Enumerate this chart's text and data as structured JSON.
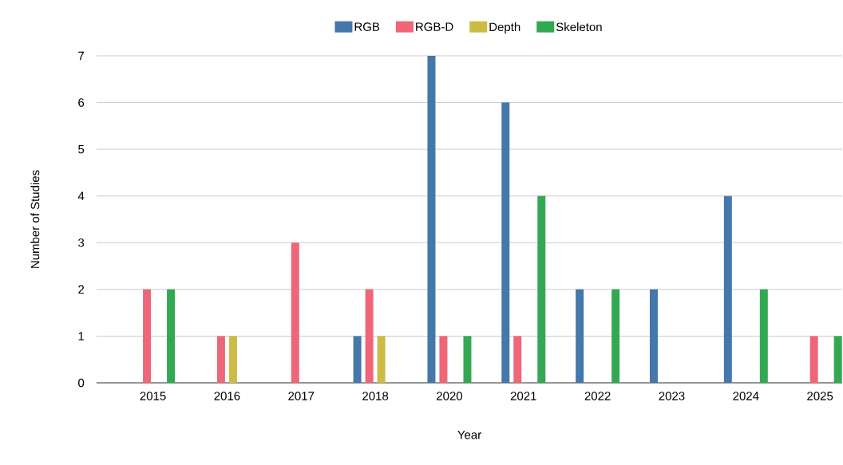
{
  "chart_data": {
    "type": "bar",
    "xlabel": "Year",
    "ylabel": "Number of Studies",
    "categories": [
      "2015",
      "2016",
      "2017",
      "2018",
      "2020",
      "2021",
      "2022",
      "2023",
      "2024",
      "2025"
    ],
    "series": [
      {
        "name": "RGB",
        "color": "#4477aa",
        "values": [
          0,
          0,
          0,
          1,
          7,
          6,
          2,
          2,
          4,
          0
        ]
      },
      {
        "name": "RGB-D",
        "color": "#ee6677",
        "values": [
          2,
          1,
          3,
          2,
          1,
          1,
          0,
          0,
          0,
          1
        ]
      },
      {
        "name": "Depth",
        "color": "#ccbb44",
        "values": [
          0,
          1,
          0,
          1,
          0,
          0,
          0,
          0,
          0,
          0
        ]
      },
      {
        "name": "Skeleton",
        "color": "#33a853",
        "values": [
          2,
          0,
          0,
          0,
          1,
          4,
          2,
          0,
          2,
          1
        ]
      }
    ],
    "ylim": [
      0,
      7
    ],
    "yticks": [
      0,
      1,
      2,
      3,
      4,
      5,
      6,
      7
    ],
    "grid": "y",
    "legend": "top"
  }
}
